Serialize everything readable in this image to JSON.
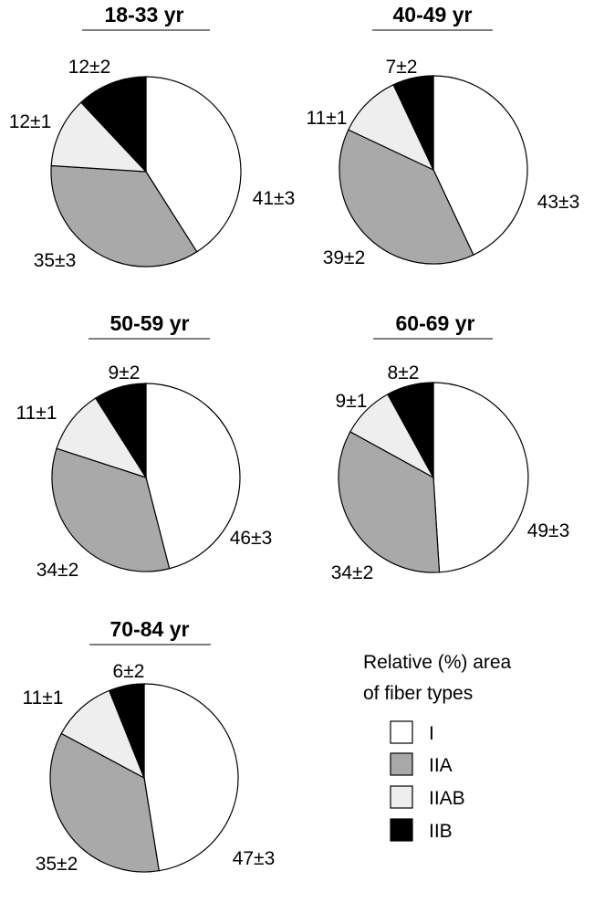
{
  "colors": {
    "I": "#ffffff",
    "IIA": "#a9a9a9",
    "IIAB": "#eeeeee",
    "IIB": "#000000",
    "stroke": "#000000"
  },
  "chart_data": [
    {
      "type": "pie",
      "title": "18-33 yr",
      "categories": [
        "I",
        "IIA",
        "IIAB",
        "IIB"
      ],
      "values": [
        41,
        35,
        12,
        12
      ],
      "labels": [
        "41±3",
        "35±3",
        "12±1",
        "12±2"
      ]
    },
    {
      "type": "pie",
      "title": "40-49 yr",
      "categories": [
        "I",
        "IIA",
        "IIAB",
        "IIB"
      ],
      "values": [
        43,
        39,
        11,
        7
      ],
      "labels": [
        "43±3",
        "39±2",
        "11±1",
        "7±2"
      ]
    },
    {
      "type": "pie",
      "title": "50-59 yr",
      "categories": [
        "I",
        "IIA",
        "IIAB",
        "IIB"
      ],
      "values": [
        46,
        34,
        11,
        9
      ],
      "labels": [
        "46±3",
        "34±2",
        "11±1",
        "9±2"
      ]
    },
    {
      "type": "pie",
      "title": "60-69 yr",
      "categories": [
        "I",
        "IIA",
        "IIAB",
        "IIB"
      ],
      "values": [
        49,
        34,
        9,
        8
      ],
      "labels": [
        "49±3",
        "34±2",
        "9±1",
        "8±2"
      ]
    },
    {
      "type": "pie",
      "title": "70-84 yr",
      "categories": [
        "I",
        "IIA",
        "IIAB",
        "IIB"
      ],
      "values": [
        47,
        35,
        11,
        6
      ],
      "labels": [
        "47±3",
        "35±2",
        "11±1",
        "6±2"
      ]
    }
  ],
  "legend": {
    "title_line1": "Relative (%) area",
    "title_line2": "of fiber types",
    "items": [
      {
        "key": "I",
        "label": "I"
      },
      {
        "key": "IIA",
        "label": "IIA"
      },
      {
        "key": "IIAB",
        "label": "IIAB"
      },
      {
        "key": "IIB",
        "label": "IIB"
      }
    ]
  }
}
